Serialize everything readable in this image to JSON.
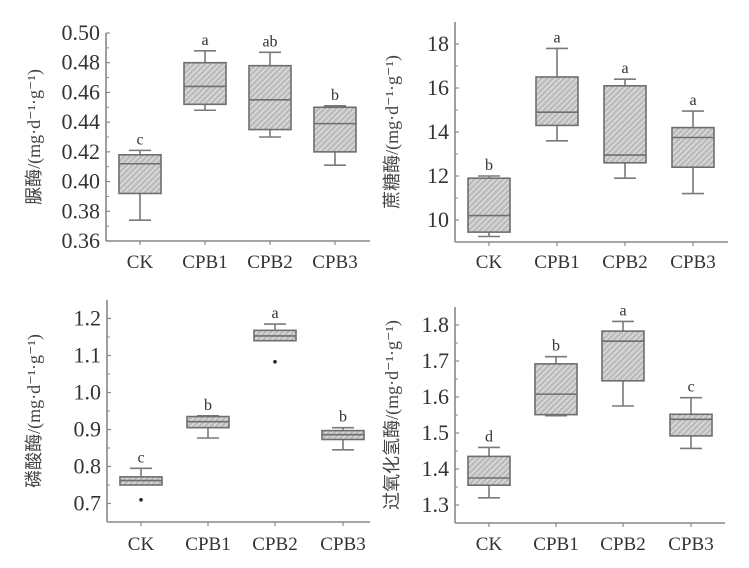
{
  "chart_data": [
    {
      "type": "box",
      "title": "",
      "ylabel": "脲酶/(mg·d⁻¹·g⁻¹)",
      "xlabel": "",
      "categories": [
        "CK",
        "CPB1",
        "CPB2",
        "CPB3"
      ],
      "ylim": [
        0.36,
        0.5
      ],
      "yticks": [
        0.36,
        0.38,
        0.4,
        0.42,
        0.44,
        0.46,
        0.48,
        0.5
      ],
      "ytick_labels": [
        "0.36",
        "0.38",
        "0.40",
        "0.42",
        "0.44",
        "0.46",
        "0.48",
        "0.50"
      ],
      "boxes": [
        {
          "category": "CK",
          "min": 0.374,
          "q1": 0.392,
          "median": 0.412,
          "q3": 0.418,
          "max": 0.421,
          "outliers": [],
          "letter": "c"
        },
        {
          "category": "CPB1",
          "min": 0.448,
          "q1": 0.452,
          "median": 0.464,
          "q3": 0.48,
          "max": 0.488,
          "outliers": [],
          "letter": "a"
        },
        {
          "category": "CPB2",
          "min": 0.43,
          "q1": 0.435,
          "median": 0.455,
          "q3": 0.478,
          "max": 0.487,
          "outliers": [],
          "letter": "ab"
        },
        {
          "category": "CPB3",
          "min": 0.411,
          "q1": 0.42,
          "median": 0.439,
          "q3": 0.45,
          "max": 0.451,
          "outliers": [],
          "letter": "b"
        }
      ],
      "grid": false,
      "legend": "none"
    },
    {
      "type": "box",
      "title": "",
      "ylabel": "蔗糖酶/(mg·d⁻¹·g⁻¹)",
      "xlabel": "",
      "categories": [
        "CK",
        "CPB1",
        "CPB2",
        "CPB3"
      ],
      "ylim": [
        9.0,
        19.0
      ],
      "yticks": [
        10,
        12,
        14,
        16,
        18
      ],
      "ytick_labels": [
        "10",
        "12",
        "14",
        "16",
        "18"
      ],
      "boxes": [
        {
          "category": "CK",
          "min": 9.25,
          "q1": 9.45,
          "median": 10.2,
          "q3": 11.9,
          "max": 12.0,
          "outliers": [],
          "letter": "b"
        },
        {
          "category": "CPB1",
          "min": 13.6,
          "q1": 14.3,
          "median": 14.9,
          "q3": 16.5,
          "max": 17.8,
          "outliers": [],
          "letter": "a"
        },
        {
          "category": "CPB2",
          "min": 11.9,
          "q1": 12.6,
          "median": 12.95,
          "q3": 16.1,
          "max": 16.4,
          "outliers": [],
          "letter": "a"
        },
        {
          "category": "CPB3",
          "min": 11.2,
          "q1": 12.4,
          "median": 13.75,
          "q3": 14.2,
          "max": 14.95,
          "outliers": [],
          "letter": "a"
        }
      ],
      "grid": false,
      "legend": "none"
    },
    {
      "type": "box",
      "title": "",
      "ylabel": "磷酸酶/(mg·d⁻¹·g⁻¹)",
      "xlabel": "",
      "categories": [
        "CK",
        "CPB1",
        "CPB2",
        "CPB3"
      ],
      "ylim": [
        0.65,
        1.25
      ],
      "yticks": [
        0.7,
        0.8,
        0.9,
        1.0,
        1.1,
        1.2
      ],
      "ytick_labels": [
        "0.7",
        "0.8",
        "0.9",
        "1.0",
        "1.1",
        "1.2"
      ],
      "boxes": [
        {
          "category": "CK",
          "min": 0.75,
          "q1": 0.75,
          "median": 0.762,
          "q3": 0.772,
          "max": 0.795,
          "outliers": [
            0.71
          ],
          "letter": "c"
        },
        {
          "category": "CPB1",
          "min": 0.877,
          "q1": 0.905,
          "median": 0.921,
          "q3": 0.935,
          "max": 0.937,
          "outliers": [],
          "letter": "b"
        },
        {
          "category": "CPB2",
          "min": 1.14,
          "q1": 1.14,
          "median": 1.153,
          "q3": 1.168,
          "max": 1.185,
          "outliers": [
            1.083
          ],
          "letter": "a"
        },
        {
          "category": "CPB3",
          "min": 0.845,
          "q1": 0.873,
          "median": 0.886,
          "q3": 0.897,
          "max": 0.905,
          "outliers": [],
          "letter": "b"
        }
      ],
      "grid": false,
      "legend": "none"
    },
    {
      "type": "box",
      "title": "",
      "ylabel": "过氧化氢酶/(mg·d⁻¹·g⁻¹)",
      "xlabel": "",
      "categories": [
        "CK",
        "CPB1",
        "CPB2",
        "CPB3"
      ],
      "ylim": [
        1.25,
        1.85
      ],
      "yticks": [
        1.3,
        1.4,
        1.5,
        1.6,
        1.7,
        1.8
      ],
      "ytick_labels": [
        "1.3",
        "1.4",
        "1.5",
        "1.6",
        "1.7",
        "1.8"
      ],
      "boxes": [
        {
          "category": "CK",
          "min": 1.32,
          "q1": 1.355,
          "median": 1.375,
          "q3": 1.435,
          "max": 1.46,
          "outliers": [],
          "letter": "d"
        },
        {
          "category": "CPB1",
          "min": 1.548,
          "q1": 1.551,
          "median": 1.608,
          "q3": 1.692,
          "max": 1.712,
          "outliers": [],
          "letter": "b"
        },
        {
          "category": "CPB2",
          "min": 1.575,
          "q1": 1.645,
          "median": 1.755,
          "q3": 1.783,
          "max": 1.81,
          "outliers": [],
          "letter": "a"
        },
        {
          "category": "CPB3",
          "min": 1.457,
          "q1": 1.492,
          "median": 1.538,
          "q3": 1.552,
          "max": 1.598,
          "outliers": [],
          "letter": "c"
        }
      ],
      "grid": false,
      "legend": "none"
    }
  ],
  "colors": {
    "axis": "#888888",
    "box_fill": "#c8c8c8",
    "hatch": "#ffffff",
    "box_stroke": "#6e6e6e",
    "whisker": "#7a7a7a",
    "outlier": "#222222",
    "text": "#333333"
  }
}
